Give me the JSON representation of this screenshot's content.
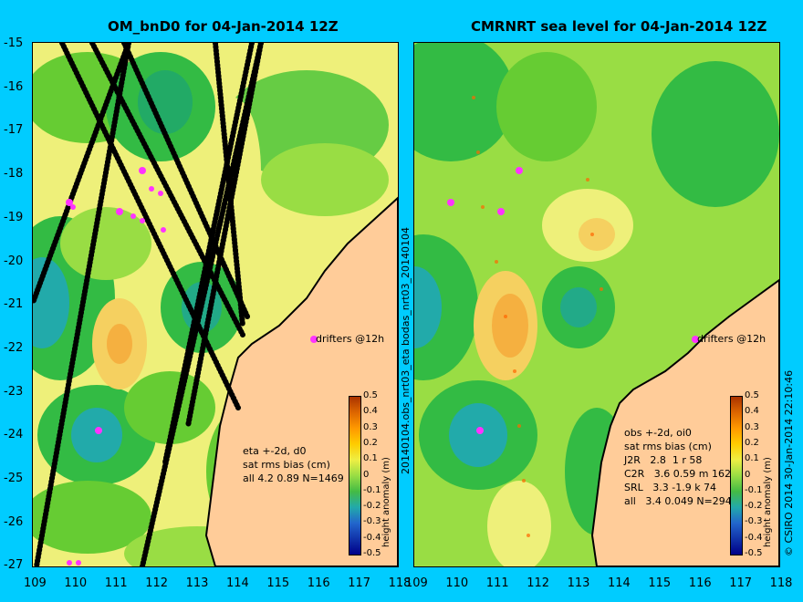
{
  "left_panel": {
    "title": "OM_bnD0 for 04-Jan-2014 12Z",
    "stats_lines": [
      "eta +-2d, d0",
      "sat rms bias (cm)",
      "all 4.2 0.89 N=1469"
    ],
    "drifters_label": "drifters @12h",
    "colorbar_title": "height anomaly (m)"
  },
  "right_panel": {
    "title": "CMRNRT sea level  for 04-Jan-2014 12Z",
    "stats_lines": [
      "obs +-2d, oi0",
      "sat rms bias (cm)",
      "J2R   2.8  1 r 58",
      "C2R   3.6 0.59 m 162",
      "SRL   3.3 -1.9 k 74",
      "all   3.4 0.049 N=294"
    ],
    "drifters_label": "drifters @12h",
    "colorbar_title": "height anomaly (m)"
  },
  "middle_vertical_label": "20140104.obs_nrt03_eta    bodas_nrt03_20140104",
  "copyright": "© CSIRO 2014   30-Jan-2014 22:10:46",
  "lat_ticks": [
    "-15",
    "-16",
    "-17",
    "-18",
    "-19",
    "-20",
    "-21",
    "-22",
    "-23",
    "-24",
    "-25",
    "-26",
    "-27"
  ],
  "lon_ticks": [
    "109",
    "110",
    "111",
    "112",
    "113",
    "114",
    "115",
    "116",
    "117",
    "118"
  ],
  "colorbar_ticks": [
    "0.5",
    "0.4",
    "0.3",
    "0.2",
    "0.1",
    "0",
    "-0.1",
    "-0.2",
    "-0.3",
    "-0.4",
    "-0.5"
  ],
  "colors": {
    "background": "#00ccff",
    "land": "#ffcc99",
    "drifter": "#ff33ff",
    "coast": "#000000"
  }
}
